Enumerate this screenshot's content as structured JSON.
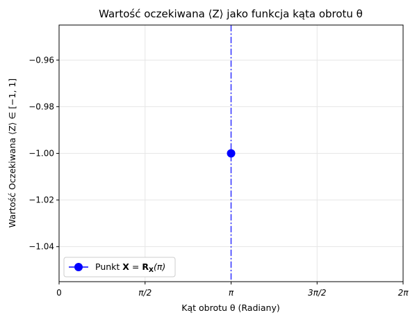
{
  "chart_data": {
    "type": "line",
    "title": "Wartość oczekiwana ⟨Z⟩ jako funkcja kąta obrotu θ",
    "xlabel": "Kąt obrotu θ (Radiany)",
    "ylabel": "Wartość Oczekiwana ⟨Z⟩ ∈ [−1, 1]",
    "xlim": [
      0,
      6.283185307
    ],
    "ylim": [
      -1.055,
      -0.945
    ],
    "grid": true,
    "x_ticks": [
      {
        "value": 0,
        "label": "0"
      },
      {
        "value": 1.5707963,
        "label": "π/2"
      },
      {
        "value": 3.1415927,
        "label": "π"
      },
      {
        "value": 4.712389,
        "label": "3π/2"
      },
      {
        "value": 6.2831853,
        "label": "2π"
      }
    ],
    "y_ticks": [
      {
        "value": -0.96,
        "label": "−0.96"
      },
      {
        "value": -0.98,
        "label": "−0.98"
      },
      {
        "value": -1.0,
        "label": "−1.00"
      },
      {
        "value": -1.02,
        "label": "−1.02"
      },
      {
        "value": -1.04,
        "label": "−1.04"
      }
    ],
    "series": [
      {
        "name": "Punkt X = R_X(π)",
        "x": [
          3.1415927
        ],
        "y": [
          -1.0
        ],
        "color": "#0000ff",
        "marker": "circle"
      }
    ],
    "vline": {
      "x": 3.1415927,
      "color": "#3b3bff",
      "style": "dashdot"
    },
    "legend": {
      "position": "lower-left",
      "label": "Punkt X = R_X(π)",
      "label_prefix": "Punkt ",
      "label_bold": "X",
      "label_eq": " = ",
      "label_bold2": "R",
      "label_sub": "X",
      "label_suffix": "(π)"
    }
  },
  "colors": {
    "point": "#0000ff",
    "vline": "#3b3bff",
    "grid": "#e6e6e6",
    "axis": "#000000"
  }
}
